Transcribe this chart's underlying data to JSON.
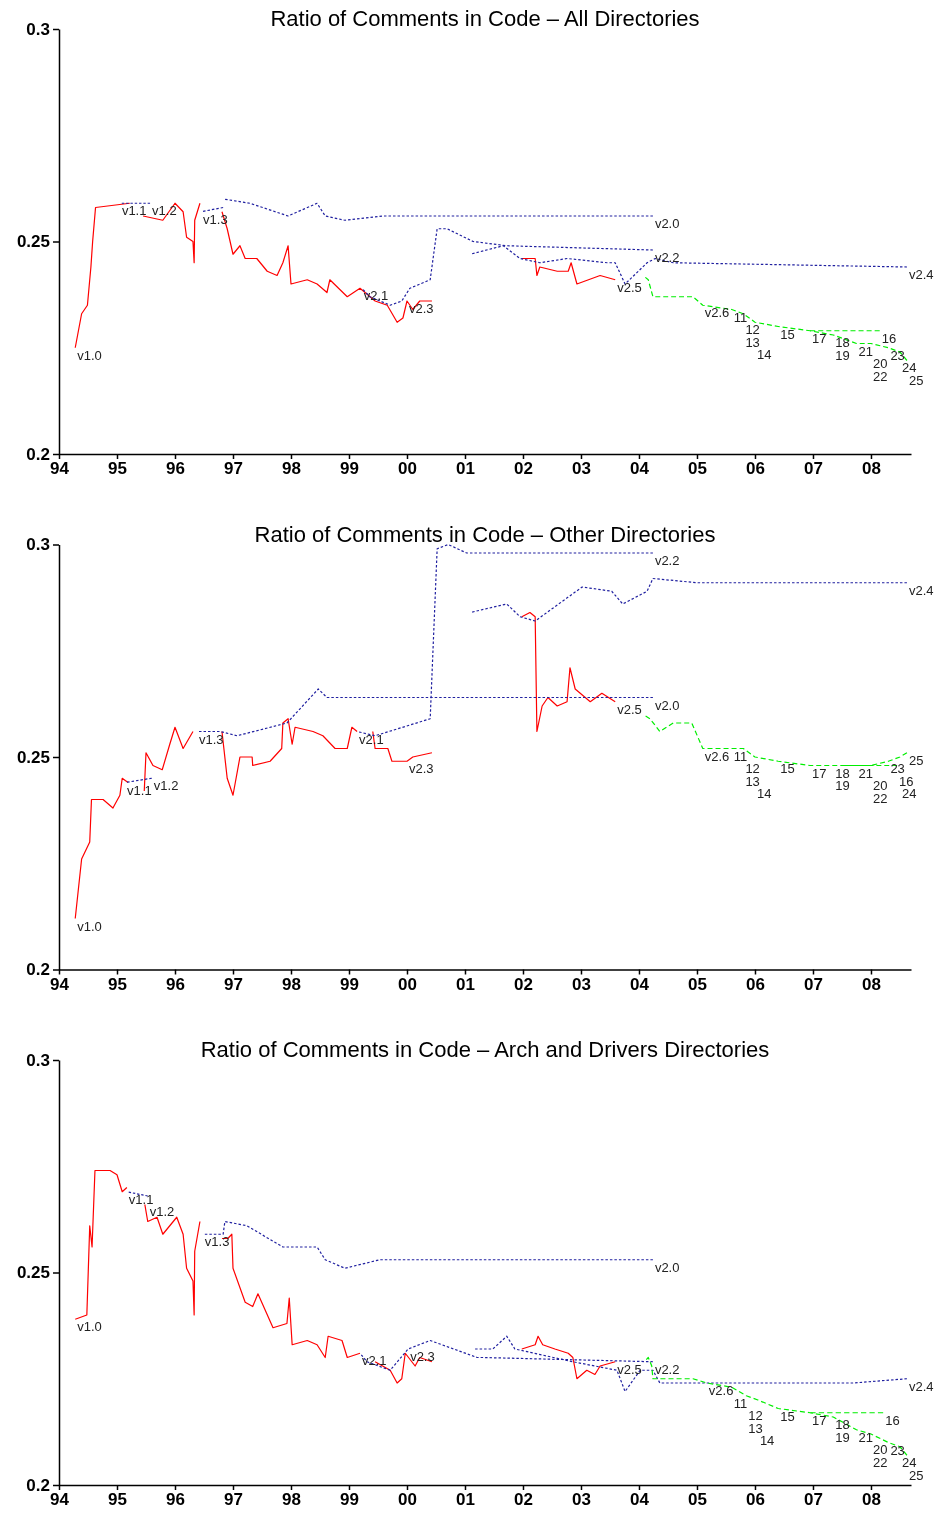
{
  "chart_data": [
    {
      "type": "line",
      "title": "Ratio of Comments in Code – All Directories",
      "xlim": [
        1994,
        2008.69
      ],
      "ylim": [
        0.2,
        0.3
      ],
      "yticks": [
        0.2,
        0.25,
        0.3
      ],
      "xticks": [
        {
          "value": 1994,
          "label": "94"
        },
        {
          "value": 1995,
          "label": "95"
        },
        {
          "value": 1996,
          "label": "96"
        },
        {
          "value": 1997,
          "label": "97"
        },
        {
          "value": 1998,
          "label": "98"
        },
        {
          "value": 1999,
          "label": "99"
        },
        {
          "value": 2000,
          "label": "00"
        },
        {
          "value": 2001,
          "label": "01"
        },
        {
          "value": 2002,
          "label": "02"
        },
        {
          "value": 2003,
          "label": "03"
        },
        {
          "value": 2004,
          "label": "04"
        },
        {
          "value": 2005,
          "label": "05"
        },
        {
          "value": 2006,
          "label": "06"
        },
        {
          "value": 2007,
          "label": "07"
        },
        {
          "value": 2008,
          "label": "08"
        }
      ],
      "series": [
        {
          "type": "line",
          "color": "#ff0000",
          "line_style": "solid",
          "x": [
            1994.28,
            1994.39,
            1994.49,
            1994.55,
            1994.58,
            1994.63,
            1995.22,
            1995.33,
            1995.45,
            1995.79,
            1996.0,
            1996.14,
            1996.2,
            1996.31,
            1996.33,
            1996.34,
            1996.43,
            1996.6,
            1996.81,
            1996.9,
            1997.0,
            1997.12,
            1997.21,
            1997.41,
            1997.59,
            1997.76,
            1997.86,
            1997.95,
            1998.0,
            1998.28,
            1998.45,
            1998.62,
            1998.67,
            1998.97,
            1999.19,
            1999.45,
            1999.66,
            1999.83,
            1999.93,
            2000.0,
            2000.1,
            2000.22,
            2000.43,
            2001.2,
            2001.98,
            2002.21,
            2002.24,
            2002.29,
            2002.59,
            2002.78,
            2002.83,
            2002.93,
            2003.33,
            2003.59
          ],
          "values": [
            0.225,
            0.233,
            0.235,
            0.244,
            0.25,
            0.258,
            0.259,
            null,
            0.256,
            0.255,
            0.259,
            0.257,
            0.251,
            0.25,
            0.245,
            0.255,
            0.259,
            null,
            0.257,
            0.253,
            0.247,
            0.249,
            0.246,
            0.246,
            0.243,
            0.242,
            0.245,
            0.249,
            0.24,
            0.241,
            0.24,
            0.238,
            0.241,
            0.237,
            0.239,
            0.236,
            0.235,
            0.231,
            0.232,
            0.236,
            0.234,
            0.236,
            0.236,
            null,
            0.246,
            0.246,
            0.242,
            0.244,
            0.243,
            0.243,
            0.245,
            0.24,
            0.242,
            0.241
          ]
        },
        {
          "type": "line",
          "color": "#2020a0",
          "line_style": "dotted",
          "x": [
            1995.05,
            1995.57
          ],
          "values": [
            0.259,
            0.259
          ]
        },
        {
          "type": "line",
          "color": "#2020a0",
          "line_style": "dotted",
          "x": [
            1996.45,
            1996.83
          ],
          "values": [
            0.257,
            0.258
          ]
        },
        {
          "type": "line",
          "color": "#2020a0",
          "line_style": "dotted",
          "x": [
            1996.83,
            1997.29,
            1997.95,
            1998.45,
            1998.59,
            1998.93,
            1999.59,
            2004.24
          ],
          "values": [
            0.26,
            0.259,
            0.256,
            0.259,
            0.256,
            0.255,
            0.256,
            0.256
          ]
        },
        {
          "type": "line",
          "color": "#2020a0",
          "line_style": "dotted",
          "x": [
            1999.22,
            1999.36,
            1999.71,
            1999.91,
            2000.05,
            2000.4,
            2000.52,
            2000.69,
            2001.14,
            2001.72,
            2004.24
          ],
          "values": [
            0.239,
            0.237,
            0.235,
            0.236,
            0.239,
            0.241,
            0.253,
            0.253,
            0.25,
            0.249,
            0.248
          ]
        },
        {
          "type": "line",
          "color": "#2020a0",
          "line_style": "dotted",
          "x": [
            2001.09,
            2001.66,
            2001.95,
            2002.29,
            2002.76,
            2003.45,
            2003.59,
            2003.76,
            2004.14,
            2004.28,
            2004.59,
            2008.62
          ],
          "values": [
            0.247,
            0.249,
            0.246,
            0.245,
            0.246,
            0.245,
            0.245,
            0.24,
            0.245,
            0.246,
            0.245,
            0.244
          ]
        },
        {
          "type": "line",
          "color": "#00ee00",
          "line_style": "dashed",
          "x": [
            2004.07,
            2004.16,
            2004.24,
            2004.48,
            2004.93,
            2005.1,
            2005.6,
            2005.8,
            2006.0,
            2006.4,
            2006.95,
            2007.35,
            2007.75,
            2008.0,
            2008.3,
            2008.5,
            2008.62
          ],
          "values": [
            0.242,
            0.241,
            0.237,
            0.237,
            0.237,
            0.235,
            0.234,
            0.233,
            0.231,
            0.23,
            0.229,
            0.228,
            0.226,
            0.226,
            0.225,
            0.224,
            0.222
          ]
        },
        {
          "type": "line",
          "color": "#00ee00",
          "line_style": "dashed",
          "x": [
            2006.9,
            2008.15
          ],
          "values": [
            0.229,
            0.229
          ]
        }
      ],
      "annotations": [
        {
          "text": "v1.0",
          "x": 1994.28,
          "y": 0.225
        },
        {
          "text": "v1.1",
          "x": 1995.05,
          "y": 0.259
        },
        {
          "text": "v1.2",
          "x": 1995.57,
          "y": 0.259
        },
        {
          "text": "v1.3",
          "x": 1996.45,
          "y": 0.257
        },
        {
          "text": "v2.1",
          "x": 1999.22,
          "y": 0.239
        },
        {
          "text": "v2.3",
          "x": 2000.0,
          "y": 0.236
        },
        {
          "text": "v2.5",
          "x": 2003.59,
          "y": 0.241
        },
        {
          "text": "v2.0",
          "x": 2004.24,
          "y": 0.256
        },
        {
          "text": "v2.2",
          "x": 2004.24,
          "y": 0.248
        },
        {
          "text": "v2.6",
          "x": 2005.1,
          "y": 0.235
        },
        {
          "text": "11",
          "x": 2005.6,
          "y": 0.234
        },
        {
          "text": "12",
          "x": 2005.8,
          "y": 0.233
        },
        {
          "text": "13",
          "x": 2005.8,
          "y": 0.233
        },
        {
          "text": "14",
          "x": 2006.0,
          "y": 0.231
        },
        {
          "text": "15",
          "x": 2006.4,
          "y": 0.23
        },
        {
          "text": "17",
          "x": 2006.95,
          "y": 0.229
        },
        {
          "text": "18",
          "x": 2007.35,
          "y": 0.228
        },
        {
          "text": "19",
          "x": 2007.35,
          "y": 0.228
        },
        {
          "text": "21",
          "x": 2007.75,
          "y": 0.226
        },
        {
          "text": "20",
          "x": 2008.0,
          "y": 0.226
        },
        {
          "text": "22",
          "x": 2008.0,
          "y": 0.226
        },
        {
          "text": "16",
          "x": 2008.15,
          "y": 0.229
        },
        {
          "text": "23",
          "x": 2008.3,
          "y": 0.225
        },
        {
          "text": "24",
          "x": 2008.5,
          "y": 0.224
        },
        {
          "text": "v2.4",
          "x": 2008.62,
          "y": 0.244
        },
        {
          "text": "25",
          "x": 2008.62,
          "y": 0.222
        }
      ]
    },
    {
      "type": "line",
      "title": "Ratio of Comments in Code – Other Directories",
      "xlim": [
        1994,
        2008.69
      ],
      "ylim": [
        0.2,
        0.3
      ],
      "yticks": [
        0.2,
        0.25,
        0.3
      ],
      "xticks": [
        {
          "value": 1994,
          "label": "94"
        },
        {
          "value": 1995,
          "label": "95"
        },
        {
          "value": 1996,
          "label": "96"
        },
        {
          "value": 1997,
          "label": "97"
        },
        {
          "value": 1998,
          "label": "98"
        },
        {
          "value": 1999,
          "label": "99"
        },
        {
          "value": 2000,
          "label": "00"
        },
        {
          "value": 2001,
          "label": "01"
        },
        {
          "value": 2002,
          "label": "02"
        },
        {
          "value": 2003,
          "label": "03"
        },
        {
          "value": 2004,
          "label": "04"
        },
        {
          "value": 2005,
          "label": "05"
        },
        {
          "value": 2006,
          "label": "06"
        },
        {
          "value": 2007,
          "label": "07"
        },
        {
          "value": 2008,
          "label": "08"
        }
      ],
      "series": [
        {
          "type": "line",
          "color": "#ff0000",
          "line_style": "solid",
          "x": [
            1994.28,
            1994.39,
            1994.53,
            1994.56,
            1994.76,
            1994.93,
            1995.05,
            1995.09,
            1995.19,
            1995.33,
            1995.47,
            1995.5,
            1995.62,
            1995.78,
            1995.91,
            1996.0,
            1996.14,
            1996.31,
            1996.55,
            1996.81,
            1996.9,
            1997.0,
            1997.12,
            1997.33,
            1997.34,
            1997.64,
            1997.84,
            1997.86,
            1997.95,
            1998.02,
            1998.07,
            1998.38,
            1998.55,
            1998.76,
            1998.97,
            1999.05,
            1999.14,
            1999.28,
            1999.41,
            1999.45,
            1999.67,
            1999.74,
            2000.0,
            2000.1,
            2000.43,
            2001.2,
            2001.98,
            2002.12,
            2002.21,
            2002.24,
            2002.33,
            2002.43,
            2002.59,
            2002.76,
            2002.81,
            2002.9,
            2003.16,
            2003.36,
            2003.59
          ],
          "values": [
            0.212,
            0.226,
            0.23,
            0.24,
            0.24,
            0.238,
            0.241,
            0.245,
            0.244,
            null,
            0.242,
            0.251,
            0.248,
            0.247,
            0.253,
            0.257,
            0.252,
            0.256,
            null,
            0.256,
            0.245,
            0.241,
            0.25,
            0.25,
            0.248,
            0.249,
            0.252,
            0.258,
            0.259,
            0.253,
            0.257,
            0.256,
            0.255,
            0.252,
            0.252,
            0.257,
            0.256,
            null,
            0.256,
            0.252,
            0.252,
            0.249,
            0.249,
            0.25,
            0.251,
            null,
            0.283,
            0.284,
            0.283,
            0.256,
            0.262,
            0.264,
            0.262,
            0.263,
            0.271,
            0.266,
            0.263,
            0.265,
            0.263
          ]
        },
        {
          "type": "line",
          "color": "#2020a0",
          "line_style": "dotted",
          "x": [
            1995.14,
            1995.6
          ],
          "values": [
            0.244,
            0.245
          ]
        },
        {
          "type": "line",
          "color": "#2020a0",
          "line_style": "dotted",
          "x": [
            1996.38,
            1996.78,
            1997.07,
            1997.93,
            1998.47,
            1998.62,
            1999.59,
            2004.24
          ],
          "values": [
            0.256,
            0.256,
            0.255,
            0.258,
            0.266,
            0.264,
            0.264,
            0.264
          ]
        },
        {
          "type": "line",
          "color": "#2020a0",
          "line_style": "dotted",
          "x": [
            1999.14,
            1999.45,
            2000.4,
            2000.52,
            2000.71,
            2001.03,
            2004.24
          ],
          "values": [
            0.256,
            0.255,
            0.259,
            0.299,
            0.3,
            0.298,
            0.298
          ]
        },
        {
          "type": "line",
          "color": "#2020a0",
          "line_style": "dotted",
          "x": [
            2001.09,
            2001.72,
            2001.95,
            2002.21,
            2003.02,
            2003.53,
            2003.72,
            2004.14,
            2004.24,
            2005.0,
            2008.62
          ],
          "values": [
            0.284,
            0.286,
            0.283,
            0.282,
            0.29,
            0.289,
            0.286,
            0.289,
            0.292,
            0.291,
            0.291
          ]
        },
        {
          "type": "line",
          "color": "#00ee00",
          "line_style": "dashed",
          "x": [
            2004.07,
            2004.19,
            2004.36,
            2004.59,
            2004.91,
            2005.1,
            2005.6,
            2005.8,
            2006.0,
            2006.4,
            2006.95,
            2007.35,
            2007.75,
            2008.0,
            2008.3,
            2008.5,
            2008.62
          ],
          "values": [
            0.26,
            0.259,
            0.256,
            0.258,
            0.258,
            0.252,
            0.252,
            0.252,
            0.25,
            0.249,
            0.248,
            0.248,
            0.248,
            0.248,
            0.249,
            0.25,
            0.251
          ]
        },
        {
          "type": "line",
          "color": "#00ee00",
          "line_style": "dashed",
          "x": [
            2007.5,
            2008.45
          ],
          "values": [
            0.248,
            0.248
          ]
        }
      ],
      "annotations": [
        {
          "text": "v1.0",
          "x": 1994.28,
          "y": 0.212
        },
        {
          "text": "v1.1",
          "x": 1995.14,
          "y": 0.244
        },
        {
          "text": "v1.2",
          "x": 1995.6,
          "y": 0.245
        },
        {
          "text": "v1.3",
          "x": 1996.38,
          "y": 0.256
        },
        {
          "text": "v2.1",
          "x": 1999.14,
          "y": 0.256
        },
        {
          "text": "v2.3",
          "x": 2000.0,
          "y": 0.249
        },
        {
          "text": "v2.5",
          "x": 2003.59,
          "y": 0.263
        },
        {
          "text": "v2.2",
          "x": 2004.24,
          "y": 0.298
        },
        {
          "text": "v2.0",
          "x": 2004.24,
          "y": 0.264
        },
        {
          "text": "v2.6",
          "x": 2005.1,
          "y": 0.252
        },
        {
          "text": "11",
          "x": 2005.6,
          "y": 0.252
        },
        {
          "text": "12",
          "x": 2005.8,
          "y": 0.252
        },
        {
          "text": "13",
          "x": 2005.8,
          "y": 0.252
        },
        {
          "text": "14",
          "x": 2006.0,
          "y": 0.25
        },
        {
          "text": "15",
          "x": 2006.4,
          "y": 0.249
        },
        {
          "text": "17",
          "x": 2006.95,
          "y": 0.248
        },
        {
          "text": "18",
          "x": 2007.35,
          "y": 0.248
        },
        {
          "text": "19",
          "x": 2007.35,
          "y": 0.248
        },
        {
          "text": "21",
          "x": 2007.75,
          "y": 0.248
        },
        {
          "text": "20",
          "x": 2008.0,
          "y": 0.248
        },
        {
          "text": "22",
          "x": 2008.0,
          "y": 0.248
        },
        {
          "text": "23",
          "x": 2008.3,
          "y": 0.249
        },
        {
          "text": "16",
          "x": 2008.45,
          "y": 0.248
        },
        {
          "text": "24",
          "x": 2008.5,
          "y": 0.25
        },
        {
          "text": "v2.4",
          "x": 2008.62,
          "y": 0.291
        },
        {
          "text": "25",
          "x": 2008.62,
          "y": 0.251
        }
      ]
    },
    {
      "type": "line",
      "title": "Ratio of Comments in Code – Arch and Drivers Directories",
      "xlim": [
        1994,
        2008.69
      ],
      "ylim": [
        0.2,
        0.3
      ],
      "yticks": [
        0.2,
        0.25,
        0.3
      ],
      "xticks": [
        {
          "value": 1994,
          "label": "94"
        },
        {
          "value": 1995,
          "label": "95"
        },
        {
          "value": 1996,
          "label": "96"
        },
        {
          "value": 1997,
          "label": "97"
        },
        {
          "value": 1998,
          "label": "98"
        },
        {
          "value": 1999,
          "label": "99"
        },
        {
          "value": 2000,
          "label": "00"
        },
        {
          "value": 2001,
          "label": "01"
        },
        {
          "value": 2002,
          "label": "02"
        },
        {
          "value": 2003,
          "label": "03"
        },
        {
          "value": 2004,
          "label": "04"
        },
        {
          "value": 2005,
          "label": "05"
        },
        {
          "value": 2006,
          "label": "06"
        },
        {
          "value": 2007,
          "label": "07"
        },
        {
          "value": 2008,
          "label": "08"
        }
      ],
      "series": [
        {
          "type": "line",
          "color": "#ff0000",
          "line_style": "solid",
          "x": [
            1994.28,
            1994.48,
            1994.53,
            1994.57,
            1994.62,
            1994.88,
            1995.0,
            1995.09,
            1995.17,
            1995.33,
            1995.48,
            1995.53,
            1995.69,
            1995.79,
            1996.03,
            1996.14,
            1996.2,
            1996.31,
            1996.33,
            1996.34,
            1996.43,
            1996.6,
            1996.81,
            1996.91,
            1996.98,
            1997.0,
            1997.21,
            1997.34,
            1997.43,
            1997.69,
            1997.93,
            1997.97,
            1998.02,
            1998.28,
            1998.45,
            1998.59,
            1998.64,
            1998.88,
            1998.97,
            1999.19,
            1999.32,
            1999.45,
            1999.71,
            1999.83,
            1999.91,
            1999.97,
            2000.14,
            2000.22,
            2000.43,
            2001.2,
            2001.98,
            2002.21,
            2002.26,
            2002.34,
            2002.55,
            2002.78,
            2002.86,
            2002.93,
            2003.1,
            2003.24,
            2003.33,
            2003.59
          ],
          "values": [
            0.239,
            0.24,
            0.261,
            0.256,
            0.274,
            0.274,
            0.273,
            0.269,
            0.27,
            null,
            0.266,
            0.262,
            0.263,
            0.259,
            0.263,
            0.259,
            0.251,
            0.248,
            0.24,
            0.255,
            0.262,
            null,
            0.258,
            0.258,
            0.259,
            0.251,
            0.243,
            0.242,
            0.245,
            0.237,
            0.238,
            0.244,
            0.233,
            0.234,
            0.233,
            0.23,
            0.235,
            0.234,
            0.23,
            0.231,
            null,
            0.229,
            0.227,
            0.224,
            0.225,
            0.231,
            0.228,
            0.23,
            0.229,
            null,
            0.232,
            0.233,
            0.235,
            0.233,
            0.232,
            0.231,
            0.23,
            0.225,
            0.227,
            0.226,
            0.228,
            0.229
          ]
        },
        {
          "type": "line",
          "color": "#2020a0",
          "line_style": "dotted",
          "x": [
            1995.17,
            1995.53
          ],
          "values": [
            0.269,
            0.268
          ]
        },
        {
          "type": "line",
          "color": "#2020a0",
          "line_style": "dotted",
          "x": [
            1996.48,
            1996.83,
            1996.86,
            1997.24,
            1997.86,
            1998.45,
            1998.59,
            1998.93,
            1999.53,
            2004.24
          ],
          "values": [
            0.259,
            0.259,
            0.262,
            0.261,
            0.256,
            0.256,
            0.253,
            0.251,
            0.253,
            0.253
          ]
        },
        {
          "type": "line",
          "color": "#2020a0",
          "line_style": "dotted",
          "x": [
            1999.19,
            1999.31,
            1999.71,
            2000.02,
            2000.4,
            2001.21,
            2001.31,
            2004.24
          ],
          "values": [
            0.231,
            0.229,
            0.227,
            0.232,
            0.234,
            0.23,
            0.23,
            0.229
          ]
        },
        {
          "type": "line",
          "color": "#2020a0",
          "line_style": "dotted",
          "x": [
            2001.14,
            2001.26,
            2001.48,
            2001.72,
            2001.86,
            2002.86,
            2003.62,
            2003.76,
            2004.02,
            2004.24,
            2004.36,
            2007.69,
            2008.62
          ],
          "values": [
            0.232,
            0.232,
            0.232,
            0.235,
            0.232,
            0.229,
            0.227,
            0.222,
            0.227,
            0.227,
            0.224,
            0.224,
            0.225
          ]
        },
        {
          "type": "line",
          "color": "#00ee00",
          "line_style": "dashed",
          "x": [
            2004.09,
            2004.16,
            2004.22,
            2004.24,
            2004.59,
            2004.93,
            2005.17,
            2005.6,
            2005.85,
            2006.05,
            2006.4,
            2006.95,
            2007.35,
            2007.75,
            2008.0,
            2008.3,
            2008.5,
            2008.62
          ],
          "values": [
            0.229,
            0.23,
            0.228,
            0.225,
            0.225,
            0.225,
            0.224,
            0.223,
            0.221,
            0.22,
            0.218,
            0.217,
            0.216,
            0.213,
            0.212,
            0.21,
            0.209,
            0.207
          ]
        },
        {
          "type": "line",
          "color": "#00ee00",
          "line_style": "dashed",
          "x": [
            2006.9,
            2008.21
          ],
          "values": [
            0.217,
            0.217
          ]
        }
      ],
      "annotations": [
        {
          "text": "v1.0",
          "x": 1994.28,
          "y": 0.239
        },
        {
          "text": "v1.1",
          "x": 1995.17,
          "y": 0.269
        },
        {
          "text": "v1.2",
          "x": 1995.53,
          "y": 0.268
        },
        {
          "text": "v1.3",
          "x": 1996.48,
          "y": 0.259
        },
        {
          "text": "v2.1",
          "x": 1999.19,
          "y": 0.231
        },
        {
          "text": "v2.3",
          "x": 2000.02,
          "y": 0.232
        },
        {
          "text": "v2.5",
          "x": 2003.59,
          "y": 0.229
        },
        {
          "text": "v2.0",
          "x": 2004.24,
          "y": 0.253
        },
        {
          "text": "v2.2",
          "x": 2004.24,
          "y": 0.229
        },
        {
          "text": "v2.6",
          "x": 2005.17,
          "y": 0.224
        },
        {
          "text": "11",
          "x": 2005.6,
          "y": 0.223
        },
        {
          "text": "12",
          "x": 2005.85,
          "y": 0.221
        },
        {
          "text": "13",
          "x": 2005.85,
          "y": 0.221
        },
        {
          "text": "14",
          "x": 2006.05,
          "y": 0.22
        },
        {
          "text": "15",
          "x": 2006.4,
          "y": 0.218
        },
        {
          "text": "17",
          "x": 2006.95,
          "y": 0.217
        },
        {
          "text": "18",
          "x": 2007.35,
          "y": 0.216
        },
        {
          "text": "19",
          "x": 2007.35,
          "y": 0.216
        },
        {
          "text": "21",
          "x": 2007.75,
          "y": 0.213
        },
        {
          "text": "20",
          "x": 2008.0,
          "y": 0.212
        },
        {
          "text": "22",
          "x": 2008.0,
          "y": 0.212
        },
        {
          "text": "16",
          "x": 2008.21,
          "y": 0.217
        },
        {
          "text": "23",
          "x": 2008.3,
          "y": 0.21
        },
        {
          "text": "24",
          "x": 2008.5,
          "y": 0.209
        },
        {
          "text": "v2.4",
          "x": 2008.62,
          "y": 0.225
        },
        {
          "text": "25",
          "x": 2008.62,
          "y": 0.207
        }
      ]
    }
  ]
}
